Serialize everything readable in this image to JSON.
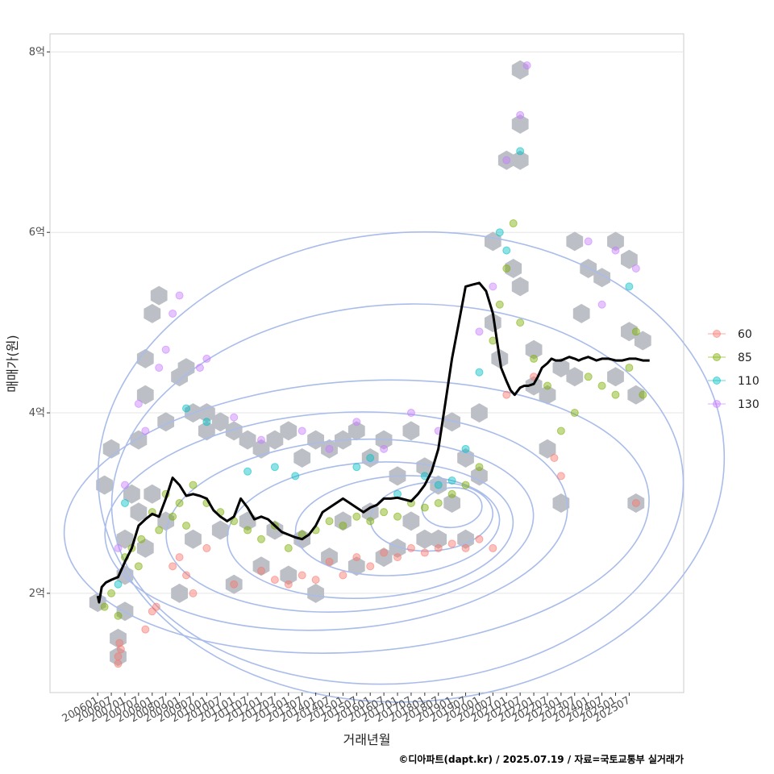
{
  "chart_data": {
    "type": "scatter",
    "xlabel": "거래년월",
    "ylabel": "매매가(원)",
    "caption": "©디아파트(dapt.kr) / 2025.07.19 / 자료=국토교통부 실거래가",
    "x_tick_labels": [
      "200601",
      "200607",
      "200701",
      "200707",
      "200801",
      "200807",
      "200901",
      "200907",
      "201001",
      "201007",
      "201101",
      "201107",
      "201201",
      "201207",
      "201301",
      "201307",
      "201401",
      "201407",
      "201501",
      "201507",
      "201601",
      "201607",
      "201701",
      "201707",
      "201801",
      "201807",
      "201901",
      "201907",
      "202001",
      "202007",
      "202101",
      "202107",
      "202201",
      "202207",
      "202301",
      "202307",
      "202401",
      "202407",
      "202501",
      "202507"
    ],
    "y_ticks": [
      {
        "value": 2,
        "label": "2억"
      },
      {
        "value": 4,
        "label": "4억"
      },
      {
        "value": 6,
        "label": "6억"
      },
      {
        "value": 8,
        "label": "8억"
      }
    ],
    "ylim": [
      0.9,
      8.2
    ],
    "xlim": [
      -3.5,
      43
    ],
    "legend": {
      "position": "right",
      "entries": [
        {
          "label": "60",
          "color": "#F8766D"
        },
        {
          "label": "85",
          "color": "#7CAE00"
        },
        {
          "label": "110",
          "color": "#00BFC4"
        },
        {
          "label": "130",
          "color": "#C77CFF"
        }
      ]
    },
    "colors": {
      "hex_fill": "#bcc0c6",
      "contour": "#a9bcea",
      "trend": "#000000",
      "grid": "#e5e5e5",
      "panel_border": "#cccccc"
    },
    "trend_line": {
      "name": "median price",
      "x": [
        0,
        0.1,
        0.3,
        0.6,
        1,
        1.5,
        2,
        2.5,
        3,
        3.5,
        4,
        4.5,
        5,
        5.5,
        6,
        6.5,
        7,
        7.5,
        8,
        8.5,
        9,
        9.5,
        10,
        10.5,
        11,
        11.5,
        12,
        12.5,
        13,
        13.5,
        14,
        14.5,
        15,
        15.5,
        16,
        16.5,
        17,
        17.5,
        18,
        18.5,
        19,
        19.5,
        20,
        20.5,
        21,
        21.5,
        22,
        22.5,
        23,
        23.5,
        24,
        24.5,
        25,
        25.5,
        26,
        26.5,
        27,
        27.5,
        28,
        28.5,
        29,
        29.3,
        29.6,
        30,
        30.3,
        30.6,
        31,
        31.3,
        31.6,
        32,
        32.3,
        32.6,
        33,
        33.3,
        33.6,
        34,
        34.3,
        34.6,
        35,
        35.3,
        35.6,
        36,
        36.3,
        36.6,
        37,
        37.5,
        38,
        38.5,
        39,
        39.5,
        40,
        40.5
      ],
      "y": [
        1.97,
        1.9,
        2.07,
        2.12,
        2.15,
        2.18,
        2.35,
        2.5,
        2.75,
        2.82,
        2.88,
        2.85,
        3.05,
        3.28,
        3.2,
        3.08,
        3.1,
        3.08,
        3.05,
        2.92,
        2.85,
        2.8,
        2.85,
        3.05,
        2.95,
        2.82,
        2.85,
        2.82,
        2.75,
        2.68,
        2.65,
        2.62,
        2.6,
        2.65,
        2.75,
        2.9,
        2.95,
        3.0,
        3.05,
        3.0,
        2.95,
        2.9,
        2.95,
        2.98,
        3.05,
        3.05,
        3.06,
        3.04,
        3.02,
        3.1,
        3.2,
        3.35,
        3.6,
        4.1,
        4.6,
        5.0,
        5.4,
        5.42,
        5.44,
        5.35,
        5.1,
        4.8,
        4.5,
        4.35,
        4.25,
        4.2,
        4.28,
        4.3,
        4.3,
        4.32,
        4.4,
        4.5,
        4.55,
        4.6,
        4.58,
        4.58,
        4.6,
        4.62,
        4.6,
        4.58,
        4.6,
        4.62,
        4.6,
        4.58,
        4.6,
        4.6,
        4.58,
        4.58,
        4.6,
        4.6,
        4.58,
        4.58
      ]
    },
    "points": [
      {
        "category": "60",
        "x": 1.5,
        "y": 1.3
      },
      {
        "category": "60",
        "x": 1.6,
        "y": 1.45
      },
      {
        "category": "60",
        "x": 1.7,
        "y": 1.38
      },
      {
        "category": "60",
        "x": 1.5,
        "y": 1.22
      },
      {
        "category": "60",
        "x": 3.5,
        "y": 1.6
      },
      {
        "category": "60",
        "x": 4,
        "y": 1.8
      },
      {
        "category": "60",
        "x": 4.3,
        "y": 1.85
      },
      {
        "category": "60",
        "x": 5.5,
        "y": 2.3
      },
      {
        "category": "60",
        "x": 6,
        "y": 2.4
      },
      {
        "category": "60",
        "x": 6.5,
        "y": 2.2
      },
      {
        "category": "60",
        "x": 7,
        "y": 2.0
      },
      {
        "category": "60",
        "x": 8,
        "y": 2.5
      },
      {
        "category": "60",
        "x": 10,
        "y": 2.1
      },
      {
        "category": "60",
        "x": 12,
        "y": 2.25
      },
      {
        "category": "60",
        "x": 13,
        "y": 2.15
      },
      {
        "category": "60",
        "x": 14,
        "y": 2.1
      },
      {
        "category": "60",
        "x": 15,
        "y": 2.2
      },
      {
        "category": "60",
        "x": 16,
        "y": 2.15
      },
      {
        "category": "60",
        "x": 17,
        "y": 2.35
      },
      {
        "category": "60",
        "x": 18,
        "y": 2.2
      },
      {
        "category": "60",
        "x": 19,
        "y": 2.4
      },
      {
        "category": "60",
        "x": 20,
        "y": 2.3
      },
      {
        "category": "60",
        "x": 21,
        "y": 2.45
      },
      {
        "category": "60",
        "x": 22,
        "y": 2.4
      },
      {
        "category": "60",
        "x": 23,
        "y": 2.5
      },
      {
        "category": "60",
        "x": 24,
        "y": 2.45
      },
      {
        "category": "60",
        "x": 25,
        "y": 2.5
      },
      {
        "category": "60",
        "x": 26,
        "y": 2.55
      },
      {
        "category": "60",
        "x": 27,
        "y": 2.5
      },
      {
        "category": "60",
        "x": 28,
        "y": 2.6
      },
      {
        "category": "60",
        "x": 29,
        "y": 2.5
      },
      {
        "category": "60",
        "x": 30,
        "y": 4.2
      },
      {
        "category": "60",
        "x": 32,
        "y": 4.4
      },
      {
        "category": "60",
        "x": 33.5,
        "y": 3.5
      },
      {
        "category": "60",
        "x": 34,
        "y": 3.3
      },
      {
        "category": "60",
        "x": 39.5,
        "y": 3.0
      },
      {
        "category": "85",
        "x": 0.5,
        "y": 1.85
      },
      {
        "category": "85",
        "x": 1,
        "y": 2.0
      },
      {
        "category": "85",
        "x": 1.5,
        "y": 1.75
      },
      {
        "category": "85",
        "x": 2,
        "y": 2.4
      },
      {
        "category": "85",
        "x": 2.5,
        "y": 2.5
      },
      {
        "category": "85",
        "x": 3,
        "y": 2.3
      },
      {
        "category": "85",
        "x": 3.2,
        "y": 2.6
      },
      {
        "category": "85",
        "x": 4,
        "y": 2.9
      },
      {
        "category": "85",
        "x": 4.5,
        "y": 2.7
      },
      {
        "category": "85",
        "x": 5,
        "y": 3.1
      },
      {
        "category": "85",
        "x": 5.5,
        "y": 2.85
      },
      {
        "category": "85",
        "x": 6,
        "y": 3.0
      },
      {
        "category": "85",
        "x": 6.5,
        "y": 2.75
      },
      {
        "category": "85",
        "x": 7,
        "y": 3.2
      },
      {
        "category": "85",
        "x": 8,
        "y": 3.0
      },
      {
        "category": "85",
        "x": 9,
        "y": 2.9
      },
      {
        "category": "85",
        "x": 10,
        "y": 2.8
      },
      {
        "category": "85",
        "x": 11,
        "y": 2.7
      },
      {
        "category": "85",
        "x": 12,
        "y": 2.6
      },
      {
        "category": "85",
        "x": 13,
        "y": 2.75
      },
      {
        "category": "85",
        "x": 14,
        "y": 2.5
      },
      {
        "category": "85",
        "x": 15,
        "y": 2.65
      },
      {
        "category": "85",
        "x": 16,
        "y": 2.7
      },
      {
        "category": "85",
        "x": 17,
        "y": 2.8
      },
      {
        "category": "85",
        "x": 18,
        "y": 2.75
      },
      {
        "category": "85",
        "x": 19,
        "y": 2.85
      },
      {
        "category": "85",
        "x": 20,
        "y": 2.8
      },
      {
        "category": "85",
        "x": 21,
        "y": 2.9
      },
      {
        "category": "85",
        "x": 22,
        "y": 2.85
      },
      {
        "category": "85",
        "x": 23,
        "y": 3.0
      },
      {
        "category": "85",
        "x": 24,
        "y": 2.95
      },
      {
        "category": "85",
        "x": 25,
        "y": 3.0
      },
      {
        "category": "85",
        "x": 26,
        "y": 3.1
      },
      {
        "category": "85",
        "x": 27,
        "y": 3.2
      },
      {
        "category": "85",
        "x": 28,
        "y": 3.4
      },
      {
        "category": "85",
        "x": 29,
        "y": 4.8
      },
      {
        "category": "85",
        "x": 29.5,
        "y": 5.2
      },
      {
        "category": "85",
        "x": 30,
        "y": 5.6
      },
      {
        "category": "85",
        "x": 30.5,
        "y": 6.1
      },
      {
        "category": "85",
        "x": 31,
        "y": 5.0
      },
      {
        "category": "85",
        "x": 32,
        "y": 4.6
      },
      {
        "category": "85",
        "x": 33,
        "y": 4.3
      },
      {
        "category": "85",
        "x": 34,
        "y": 3.8
      },
      {
        "category": "85",
        "x": 35,
        "y": 4.0
      },
      {
        "category": "85",
        "x": 36,
        "y": 4.4
      },
      {
        "category": "85",
        "x": 37,
        "y": 4.3
      },
      {
        "category": "85",
        "x": 38,
        "y": 4.2
      },
      {
        "category": "85",
        "x": 39,
        "y": 4.5
      },
      {
        "category": "85",
        "x": 39.5,
        "y": 4.9
      },
      {
        "category": "85",
        "x": 40,
        "y": 4.2
      },
      {
        "category": "110",
        "x": 1.5,
        "y": 2.1
      },
      {
        "category": "110",
        "x": 2,
        "y": 3.0
      },
      {
        "category": "110",
        "x": 6.5,
        "y": 4.05
      },
      {
        "category": "110",
        "x": 8,
        "y": 3.9
      },
      {
        "category": "110",
        "x": 11,
        "y": 3.35
      },
      {
        "category": "110",
        "x": 13,
        "y": 3.4
      },
      {
        "category": "110",
        "x": 14.5,
        "y": 3.3
      },
      {
        "category": "110",
        "x": 19,
        "y": 3.4
      },
      {
        "category": "110",
        "x": 20,
        "y": 3.5
      },
      {
        "category": "110",
        "x": 22,
        "y": 3.1
      },
      {
        "category": "110",
        "x": 24,
        "y": 3.3
      },
      {
        "category": "110",
        "x": 25,
        "y": 3.2
      },
      {
        "category": "110",
        "x": 26,
        "y": 3.25
      },
      {
        "category": "110",
        "x": 27,
        "y": 3.6
      },
      {
        "category": "110",
        "x": 28,
        "y": 4.45
      },
      {
        "category": "110",
        "x": 29.5,
        "y": 6.0
      },
      {
        "category": "110",
        "x": 30,
        "y": 5.8
      },
      {
        "category": "110",
        "x": 31,
        "y": 6.9
      },
      {
        "category": "110",
        "x": 39,
        "y": 5.4
      },
      {
        "category": "130",
        "x": 1.5,
        "y": 2.5
      },
      {
        "category": "130",
        "x": 2,
        "y": 3.2
      },
      {
        "category": "130",
        "x": 3,
        "y": 4.1
      },
      {
        "category": "130",
        "x": 3.5,
        "y": 3.8
      },
      {
        "category": "130",
        "x": 4.5,
        "y": 4.5
      },
      {
        "category": "130",
        "x": 5,
        "y": 4.7
      },
      {
        "category": "130",
        "x": 5.5,
        "y": 5.1
      },
      {
        "category": "130",
        "x": 6,
        "y": 5.3
      },
      {
        "category": "130",
        "x": 7.5,
        "y": 4.5
      },
      {
        "category": "130",
        "x": 8,
        "y": 4.6
      },
      {
        "category": "130",
        "x": 10,
        "y": 3.95
      },
      {
        "category": "130",
        "x": 12,
        "y": 3.7
      },
      {
        "category": "130",
        "x": 15,
        "y": 3.8
      },
      {
        "category": "130",
        "x": 17,
        "y": 3.6
      },
      {
        "category": "130",
        "x": 19,
        "y": 3.9
      },
      {
        "category": "130",
        "x": 21,
        "y": 3.6
      },
      {
        "category": "130",
        "x": 23,
        "y": 4.0
      },
      {
        "category": "130",
        "x": 25,
        "y": 3.8
      },
      {
        "category": "130",
        "x": 28,
        "y": 4.9
      },
      {
        "category": "130",
        "x": 29,
        "y": 5.4
      },
      {
        "category": "130",
        "x": 30,
        "y": 6.8
      },
      {
        "category": "130",
        "x": 31,
        "y": 7.3
      },
      {
        "category": "130",
        "x": 31.5,
        "y": 7.85
      },
      {
        "category": "130",
        "x": 36,
        "y": 5.9
      },
      {
        "category": "130",
        "x": 37,
        "y": 5.2
      },
      {
        "category": "130",
        "x": 38,
        "y": 5.8
      },
      {
        "category": "130",
        "x": 39.5,
        "y": 5.6
      }
    ],
    "hex_bins": [
      [
        0,
        1.9
      ],
      [
        0.5,
        3.2
      ],
      [
        1,
        3.6
      ],
      [
        1.5,
        1.5
      ],
      [
        1.5,
        1.3
      ],
      [
        2,
        1.8
      ],
      [
        2,
        2.2
      ],
      [
        2,
        2.6
      ],
      [
        2.5,
        3.1
      ],
      [
        3,
        3.7
      ],
      [
        3,
        2.9
      ],
      [
        3.5,
        4.2
      ],
      [
        3.5,
        4.6
      ],
      [
        3.5,
        2.5
      ],
      [
        4,
        5.1
      ],
      [
        4.5,
        5.3
      ],
      [
        4,
        3.1
      ],
      [
        5,
        3.9
      ],
      [
        5,
        2.8
      ],
      [
        6,
        4.4
      ],
      [
        6.5,
        4.5
      ],
      [
        6,
        2.0
      ],
      [
        7,
        4.0
      ],
      [
        7,
        2.6
      ],
      [
        8,
        4.0
      ],
      [
        8,
        3.8
      ],
      [
        9,
        3.9
      ],
      [
        9,
        2.7
      ],
      [
        10,
        3.8
      ],
      [
        10,
        2.1
      ],
      [
        11,
        3.7
      ],
      [
        11,
        2.8
      ],
      [
        12,
        3.6
      ],
      [
        12,
        2.3
      ],
      [
        13,
        3.7
      ],
      [
        13,
        2.7
      ],
      [
        14,
        3.8
      ],
      [
        14,
        2.2
      ],
      [
        15,
        3.5
      ],
      [
        15,
        2.6
      ],
      [
        16,
        3.7
      ],
      [
        16,
        2.0
      ],
      [
        17,
        3.6
      ],
      [
        17,
        2.4
      ],
      [
        18,
        3.7
      ],
      [
        18,
        2.8
      ],
      [
        19,
        3.8
      ],
      [
        19,
        2.3
      ],
      [
        20,
        3.5
      ],
      [
        20,
        2.9
      ],
      [
        21,
        3.7
      ],
      [
        21,
        2.4
      ],
      [
        22,
        3.3
      ],
      [
        22,
        2.5
      ],
      [
        23,
        3.8
      ],
      [
        23,
        2.8
      ],
      [
        24,
        3.4
      ],
      [
        24,
        2.6
      ],
      [
        25,
        3.2
      ],
      [
        25,
        2.6
      ],
      [
        26,
        3.9
      ],
      [
        26,
        3.0
      ],
      [
        27,
        3.5
      ],
      [
        27,
        2.6
      ],
      [
        28,
        4.0
      ],
      [
        28,
        3.3
      ],
      [
        29,
        5.9
      ],
      [
        29,
        5.0
      ],
      [
        29.5,
        4.6
      ],
      [
        30,
        6.8
      ],
      [
        30.5,
        5.6
      ],
      [
        31,
        7.8
      ],
      [
        31,
        7.2
      ],
      [
        31,
        6.8
      ],
      [
        31,
        5.4
      ],
      [
        32,
        4.3
      ],
      [
        32,
        4.7
      ],
      [
        33,
        4.2
      ],
      [
        33,
        3.6
      ],
      [
        34,
        4.5
      ],
      [
        34,
        3.0
      ],
      [
        35,
        4.4
      ],
      [
        35,
        5.9
      ],
      [
        35.5,
        5.1
      ],
      [
        36,
        5.6
      ],
      [
        37,
        5.5
      ],
      [
        38,
        5.9
      ],
      [
        38,
        4.4
      ],
      [
        39,
        5.7
      ],
      [
        39,
        4.9
      ],
      [
        39.5,
        4.2
      ],
      [
        39.5,
        3.0
      ],
      [
        40,
        4.8
      ]
    ],
    "contours": [
      {
        "center": [
          26,
          2.95
        ],
        "rx": 2.2,
        "ry": 0.22
      },
      {
        "center": [
          24.5,
          2.85
        ],
        "rx": 4.5,
        "ry": 0.38
      },
      {
        "center": [
          22,
          2.75
        ],
        "rx": 7.5,
        "ry": 0.55
      },
      {
        "center": [
          20,
          2.7
        ],
        "rx": 10.5,
        "ry": 0.75
      },
      {
        "center": [
          18.5,
          2.75
        ],
        "rx": 13.5,
        "ry": 0.95
      },
      {
        "center": [
          17.5,
          2.8
        ],
        "rx": 17,
        "ry": 1.2
      },
      {
        "center": [
          19,
          2.85
        ],
        "rx": 21.5,
        "ry": 1.5
      },
      {
        "center": [
          22,
          3.1
        ],
        "rx": 21,
        "ry": 2.1
      },
      {
        "center": [
          23,
          3.4
        ],
        "rx": 23,
        "ry": 2.6
      }
    ]
  }
}
